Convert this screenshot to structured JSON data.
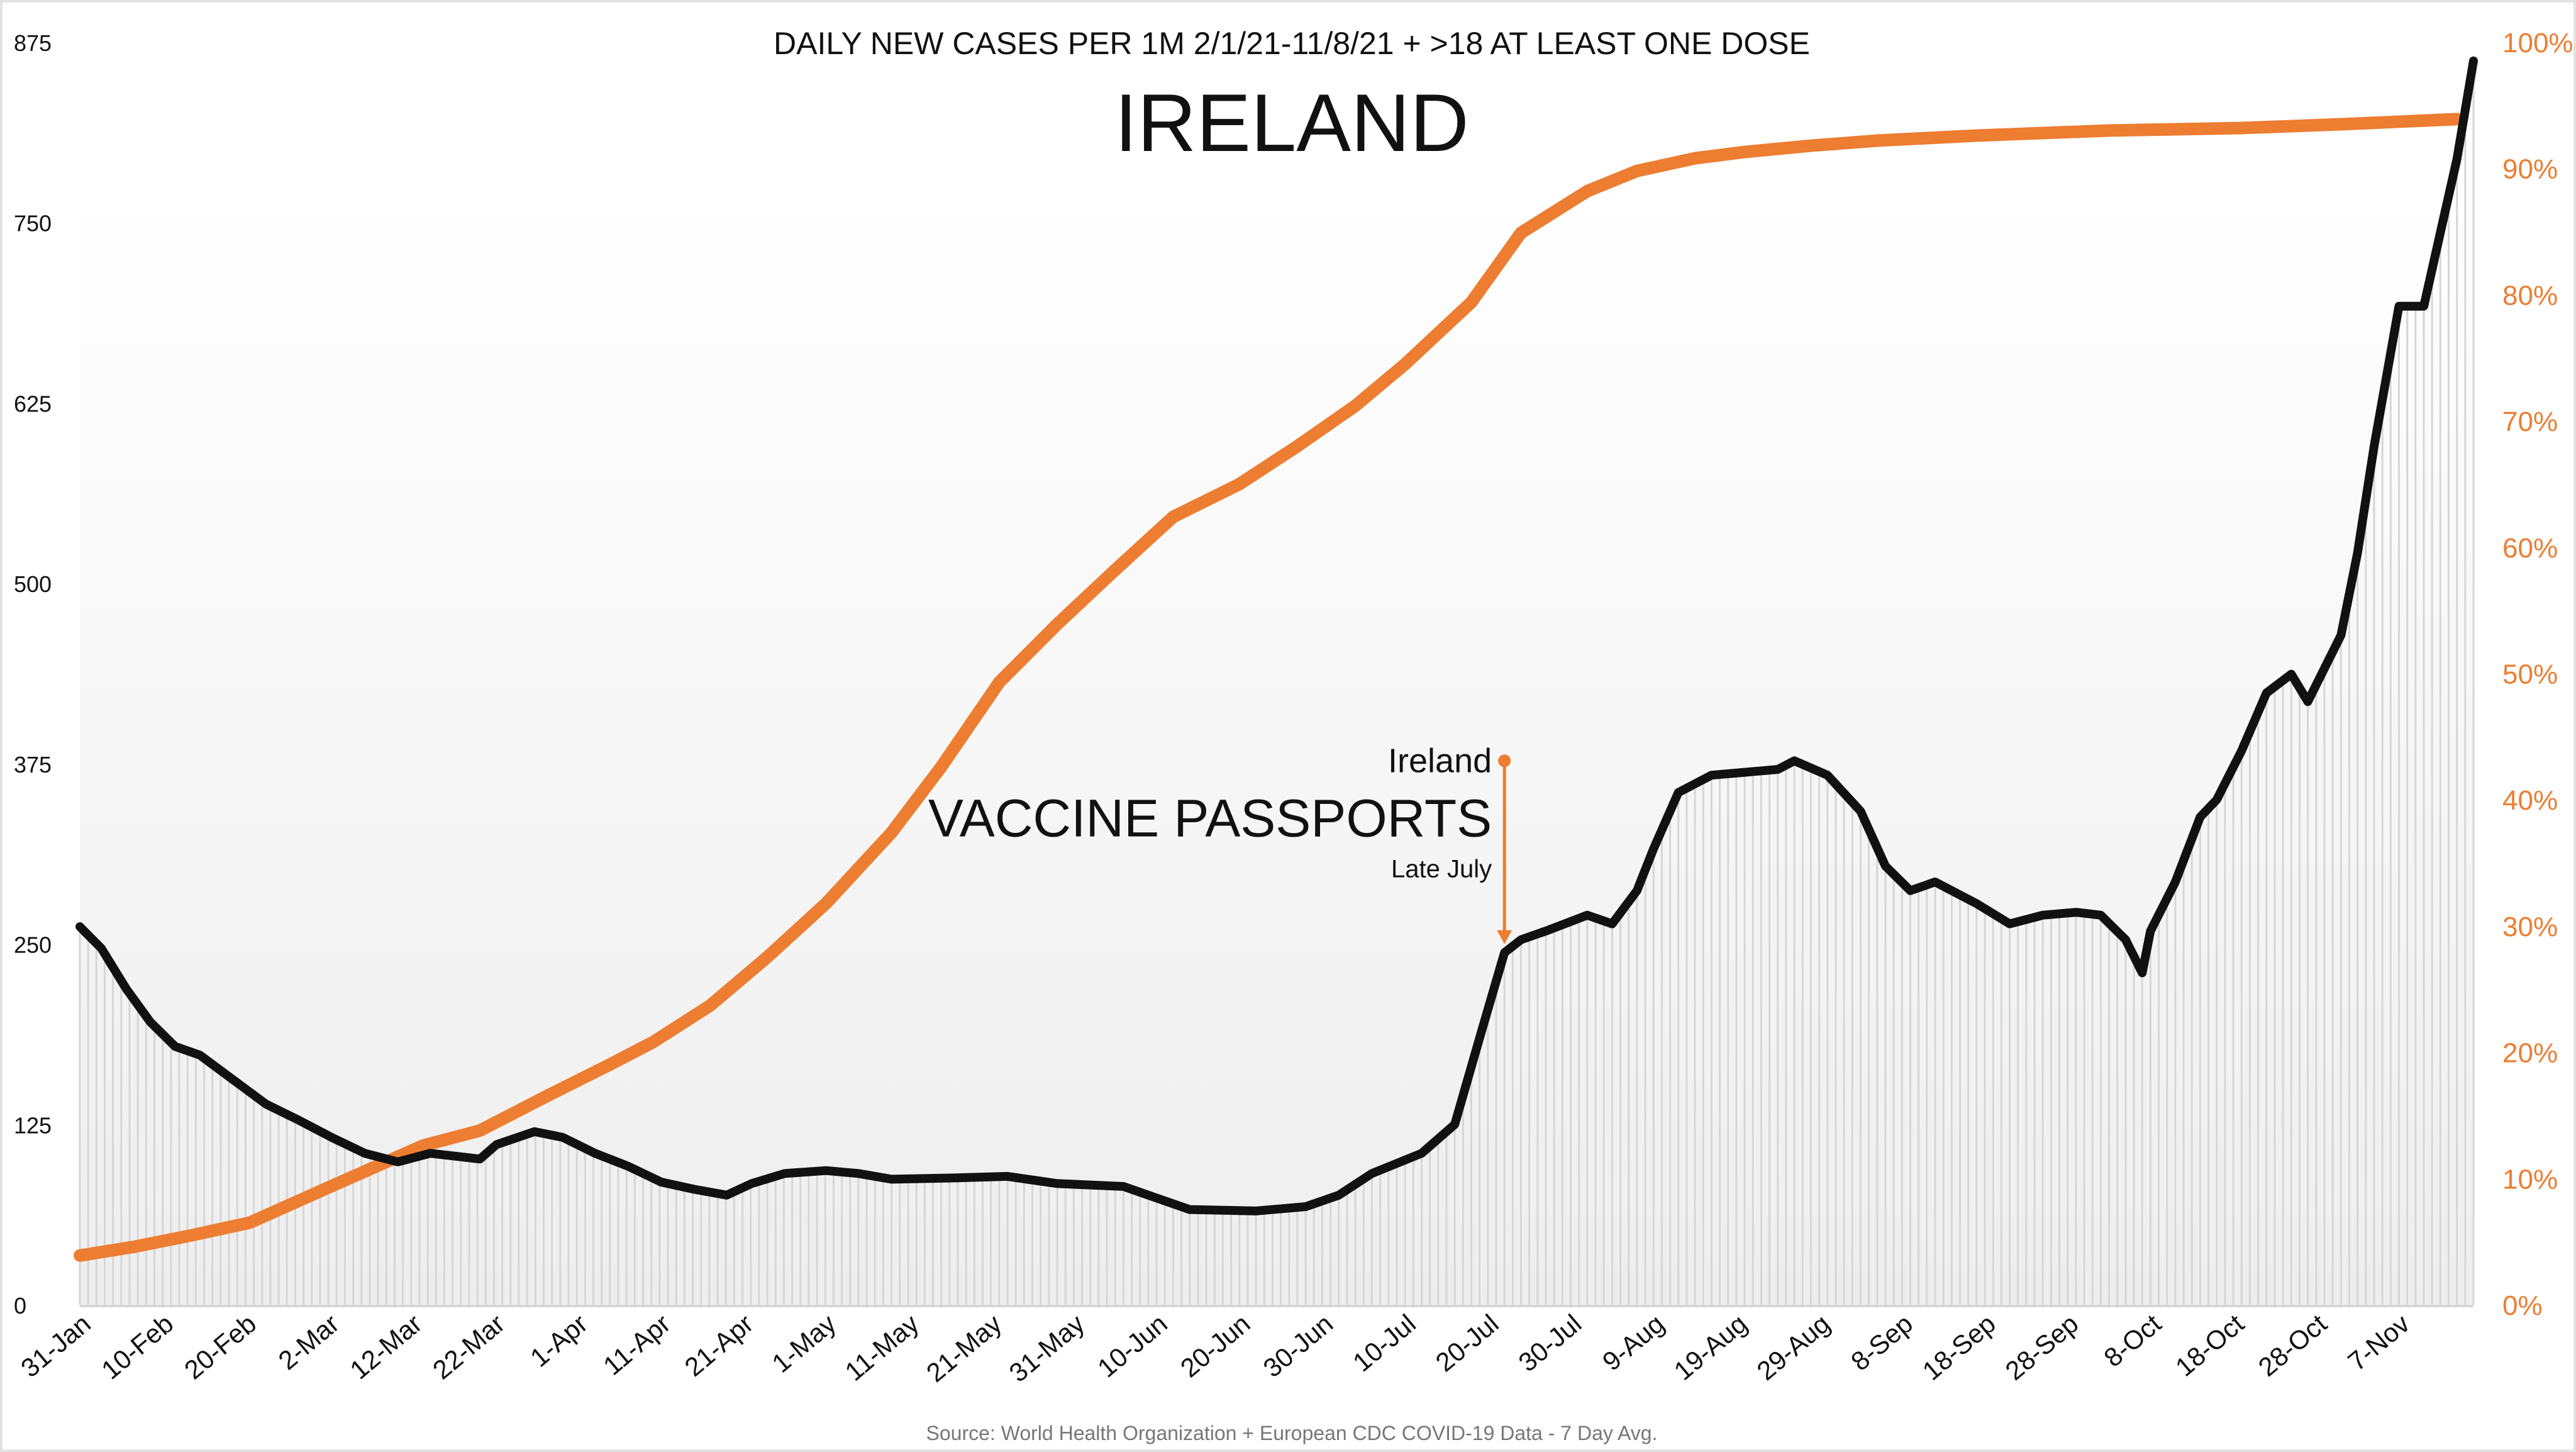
{
  "chart_data": {
    "type": "line",
    "title": "DAILY NEW CASES PER 1M 2/1/21-11/8/21 + >18 AT LEAST ONE DOSE",
    "subtitle": "IRELAND",
    "source": "Source: World Health Organization + European CDC COVID-19 Data - 7 Day Avg.",
    "x_unit": "days since 31-Jan",
    "x_range": [
      0,
      289
    ],
    "x_ticks": [
      {
        "day": 0,
        "label": "31-Jan"
      },
      {
        "day": 10,
        "label": "10-Feb"
      },
      {
        "day": 20,
        "label": "20-Feb"
      },
      {
        "day": 30,
        "label": "2-Mar"
      },
      {
        "day": 40,
        "label": "12-Mar"
      },
      {
        "day": 50,
        "label": "22-Mar"
      },
      {
        "day": 60,
        "label": "1-Apr"
      },
      {
        "day": 70,
        "label": "11-Apr"
      },
      {
        "day": 80,
        "label": "21-Apr"
      },
      {
        "day": 90,
        "label": "1-May"
      },
      {
        "day": 100,
        "label": "11-May"
      },
      {
        "day": 110,
        "label": "21-May"
      },
      {
        "day": 120,
        "label": "31-May"
      },
      {
        "day": 130,
        "label": "10-Jun"
      },
      {
        "day": 140,
        "label": "20-Jun"
      },
      {
        "day": 150,
        "label": "30-Jun"
      },
      {
        "day": 160,
        "label": "10-Jul"
      },
      {
        "day": 170,
        "label": "20-Jul"
      },
      {
        "day": 180,
        "label": "30-Jul"
      },
      {
        "day": 190,
        "label": "9-Aug"
      },
      {
        "day": 200,
        "label": "19-Aug"
      },
      {
        "day": 210,
        "label": "29-Aug"
      },
      {
        "day": 220,
        "label": "8-Sep"
      },
      {
        "day": 230,
        "label": "18-Sep"
      },
      {
        "day": 240,
        "label": "28-Sep"
      },
      {
        "day": 250,
        "label": "8-Oct"
      },
      {
        "day": 260,
        "label": "18-Oct"
      },
      {
        "day": 270,
        "label": "28-Oct"
      },
      {
        "day": 280,
        "label": "7-Nov"
      }
    ],
    "y_left": {
      "range": [
        0,
        875
      ],
      "ticks": [
        "0",
        "125",
        "250",
        "375",
        "500",
        "625",
        "750",
        "875"
      ]
    },
    "y_right": {
      "range": [
        0,
        100
      ],
      "ticks": [
        "0%",
        "10%",
        "20%",
        "30%",
        "40%",
        "50%",
        "60%",
        "70%",
        "80%",
        "90%",
        "100%"
      ]
    },
    "series": [
      {
        "name": "Daily new cases per 1M",
        "axis": "left",
        "color": "#111111",
        "points": [
          [
            0,
            262
          ],
          [
            2.6,
            247
          ],
          [
            5.6,
            219
          ],
          [
            8.5,
            196
          ],
          [
            11.5,
            179
          ],
          [
            14.5,
            173
          ],
          [
            18.5,
            156
          ],
          [
            22.5,
            139
          ],
          [
            26.4,
            128
          ],
          [
            30.4,
            116
          ],
          [
            34.4,
            105
          ],
          [
            38.4,
            99
          ],
          [
            42.3,
            105
          ],
          [
            48.3,
            101
          ],
          [
            50.3,
            111
          ],
          [
            54.9,
            120
          ],
          [
            58.3,
            116
          ],
          [
            62.2,
            105
          ],
          [
            66.2,
            96
          ],
          [
            70.2,
            85
          ],
          [
            74.2,
            80
          ],
          [
            78.1,
            76
          ],
          [
            81.1,
            84
          ],
          [
            85.1,
            91
          ],
          [
            90.1,
            93
          ],
          [
            94,
            91
          ],
          [
            98,
            87
          ],
          [
            106,
            88
          ],
          [
            112,
            89
          ],
          [
            118,
            84
          ],
          [
            126,
            82
          ],
          [
            130,
            74
          ],
          [
            134,
            66
          ],
          [
            142,
            65
          ],
          [
            148,
            68
          ],
          [
            152,
            76
          ],
          [
            156,
            91
          ],
          [
            162,
            105
          ],
          [
            166,
            125
          ],
          [
            169,
            185
          ],
          [
            172,
            244
          ],
          [
            174,
            253
          ],
          [
            177,
            259
          ],
          [
            182,
            270
          ],
          [
            185,
            264
          ],
          [
            188,
            287
          ],
          [
            190,
            316
          ],
          [
            193,
            355
          ],
          [
            197,
            367
          ],
          [
            201,
            369
          ],
          [
            205,
            371
          ],
          [
            207,
            377
          ],
          [
            211,
            367
          ],
          [
            215,
            342
          ],
          [
            218,
            304
          ],
          [
            221,
            287
          ],
          [
            224,
            293
          ],
          [
            229,
            278
          ],
          [
            233,
            264
          ],
          [
            237,
            270
          ],
          [
            241,
            272
          ],
          [
            244,
            270
          ],
          [
            247,
            253
          ],
          [
            249,
            230
          ],
          [
            250,
            259
          ],
          [
            253,
            293
          ],
          [
            256,
            338
          ],
          [
            258,
            350
          ],
          [
            261,
            384
          ],
          [
            264,
            424
          ],
          [
            267,
            437
          ],
          [
            269,
            418
          ],
          [
            273,
            464
          ],
          [
            275,
            521
          ],
          [
            277,
            595
          ],
          [
            280,
            692
          ],
          [
            283,
            692
          ],
          [
            285,
            743
          ],
          [
            287,
            794
          ],
          [
            289,
            862
          ]
        ]
      },
      {
        "name": ">18 at least one dose",
        "axis": "right",
        "color": "#ED7D31",
        "points": [
          [
            0,
            3.9
          ],
          [
            6.6,
            4.6
          ],
          [
            13.5,
            5.5
          ],
          [
            20.5,
            6.5
          ],
          [
            30.4,
            9.4
          ],
          [
            41.4,
            12.6
          ],
          [
            48.3,
            13.8
          ],
          [
            56.3,
            16.5
          ],
          [
            64.2,
            19.1
          ],
          [
            69.2,
            20.8
          ],
          [
            76.1,
            23.7
          ],
          [
            83.1,
            27.6
          ],
          [
            90.1,
            31.8
          ],
          [
            98,
            37.4
          ],
          [
            104,
            42.6
          ],
          [
            111,
            49.3
          ],
          [
            118,
            53.9
          ],
          [
            125,
            58.2
          ],
          [
            132,
            62.4
          ],
          [
            140,
            65
          ],
          [
            147,
            68
          ],
          [
            154,
            71.2
          ],
          [
            160,
            74.5
          ],
          [
            168,
            79.4
          ],
          [
            174,
            84.9
          ],
          [
            182,
            88.2
          ],
          [
            188,
            89.8
          ],
          [
            195,
            90.8
          ],
          [
            201,
            91.3
          ],
          [
            209,
            91.8
          ],
          [
            217,
            92.2
          ],
          [
            229,
            92.6
          ],
          [
            245,
            93
          ],
          [
            261,
            93.2
          ],
          [
            273,
            93.5
          ],
          [
            287,
            93.9
          ]
        ]
      }
    ],
    "annotation": {
      "day": 172,
      "value_from": 377,
      "value_to": 250,
      "line1": "Ireland",
      "line2": "VACCINE PASSPORTS",
      "line3": "Late July",
      "color": "#ED7D31"
    },
    "grid": false,
    "legend": "none"
  }
}
